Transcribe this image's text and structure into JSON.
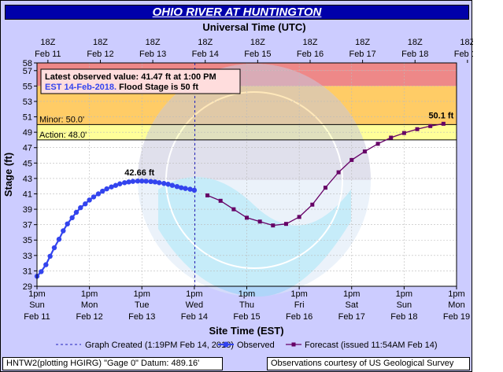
{
  "header": {
    "title": "OHIO RIVER AT HUNTINGTON"
  },
  "top_axis": {
    "title": "Universal Time (UTC)",
    "ticks": [
      {
        "hour": "18Z",
        "date": "Feb 11"
      },
      {
        "hour": "18Z",
        "date": "Feb 12"
      },
      {
        "hour": "18Z",
        "date": "Feb 13"
      },
      {
        "hour": "18Z",
        "date": "Feb 14"
      },
      {
        "hour": "18Z",
        "date": "Feb 15"
      },
      {
        "hour": "18Z",
        "date": "Feb 16"
      },
      {
        "hour": "18Z",
        "date": "Feb 17"
      },
      {
        "hour": "18Z",
        "date": "Feb 18"
      },
      {
        "hour": "18Z",
        "date": "Feb 19"
      }
    ]
  },
  "bottom_axis": {
    "title": "Site Time (EST)",
    "ticks": [
      {
        "time": "1pm",
        "day": "Sun",
        "date": "Feb 11"
      },
      {
        "time": "1pm",
        "day": "Mon",
        "date": "Feb 12"
      },
      {
        "time": "1pm",
        "day": "Tue",
        "date": "Feb 13"
      },
      {
        "time": "1pm",
        "day": "Wed",
        "date": "Feb 14"
      },
      {
        "time": "1pm",
        "day": "Thu",
        "date": "Feb 15"
      },
      {
        "time": "1pm",
        "day": "Fri",
        "date": "Feb 16"
      },
      {
        "time": "1pm",
        "day": "Sat",
        "date": "Feb 17"
      },
      {
        "time": "1pm",
        "day": "Sun",
        "date": "Feb 18"
      },
      {
        "time": "1pm",
        "day": "Mon",
        "date": "Feb 19"
      }
    ]
  },
  "info_box": {
    "line1": "Latest observed value: 41.47 ft at 1:00 PM",
    "line2a": "EST 14-Feb-2018.",
    "line2b": " Flood Stage is 50 ft"
  },
  "legend": {
    "created": "Graph Created (1:19PM Feb 14, 2018)",
    "observed": "Observed",
    "forecast": "Forecast (issued 11:54AM Feb 14)"
  },
  "footer": {
    "left": "HNTW2(plotting HGIRG) \"Gage 0\" Datum: 489.16'",
    "right": "Observations courtesy of US Geological Survey"
  },
  "colors": {
    "title_bg": "#0000aa",
    "observed": "#3344ee",
    "forecast": "#660066",
    "moderate": "#ee8888",
    "minor": "#ffcc66",
    "action": "#ffff99"
  },
  "chart_data": {
    "type": "line",
    "ylabel": "Stage (ft)",
    "ylim": [
      29,
      58
    ],
    "y_ticks": [
      29,
      31,
      33,
      35,
      37,
      39,
      41,
      43,
      45,
      47,
      49,
      51,
      53,
      55,
      57,
      58
    ],
    "x_unit": "days from 1pm EST Feb 11",
    "x_range": [
      0,
      8
    ],
    "grid": true,
    "flood_categories": [
      {
        "name": "Major",
        "from": 57,
        "to": 58
      },
      {
        "name": "Moderate",
        "from": 55,
        "to": 57
      },
      {
        "name": "Minor",
        "label": "Minor: 50.0'",
        "from": 50,
        "to": 55
      },
      {
        "name": "Action",
        "label": "Action: 48.0'",
        "from": 48,
        "to": 50
      }
    ],
    "graph_created_x": 3.01,
    "series": [
      {
        "name": "Observed",
        "x": [
          0.0,
          0.08,
          0.17,
          0.25,
          0.33,
          0.42,
          0.5,
          0.58,
          0.67,
          0.75,
          0.83,
          0.92,
          1.0,
          1.08,
          1.17,
          1.25,
          1.33,
          1.42,
          1.5,
          1.58,
          1.67,
          1.75,
          1.83,
          1.92,
          2.0,
          2.08,
          2.17,
          2.25,
          2.33,
          2.42,
          2.5,
          2.58,
          2.67,
          2.75,
          2.83,
          2.92,
          3.0
        ],
        "values": [
          30.3,
          30.9,
          31.8,
          32.9,
          34.0,
          35.1,
          36.2,
          37.1,
          37.9,
          38.6,
          39.2,
          39.7,
          40.2,
          40.6,
          41.0,
          41.35,
          41.65,
          41.9,
          42.1,
          42.3,
          42.45,
          42.55,
          42.62,
          42.66,
          42.66,
          42.64,
          42.6,
          42.55,
          42.45,
          42.35,
          42.25,
          42.1,
          41.95,
          41.8,
          41.7,
          41.6,
          41.47
        ]
      },
      {
        "name": "Forecast",
        "x": [
          3.25,
          3.5,
          3.75,
          4.0,
          4.25,
          4.5,
          4.75,
          5.0,
          5.25,
          5.5,
          5.75,
          6.0,
          6.25,
          6.5,
          6.75,
          7.0,
          7.25,
          7.5,
          7.75
        ],
        "values": [
          40.8,
          40.1,
          39.0,
          37.9,
          37.4,
          36.9,
          37.1,
          38.0,
          39.6,
          41.8,
          43.8,
          45.4,
          46.5,
          47.5,
          48.3,
          48.9,
          49.4,
          49.8,
          50.1
        ]
      }
    ],
    "annotations": [
      {
        "text": "42.66 ft",
        "x": 2.0,
        "y": 42.66
      },
      {
        "text": "50.1 ft",
        "x": 7.75,
        "y": 50.1
      }
    ]
  }
}
